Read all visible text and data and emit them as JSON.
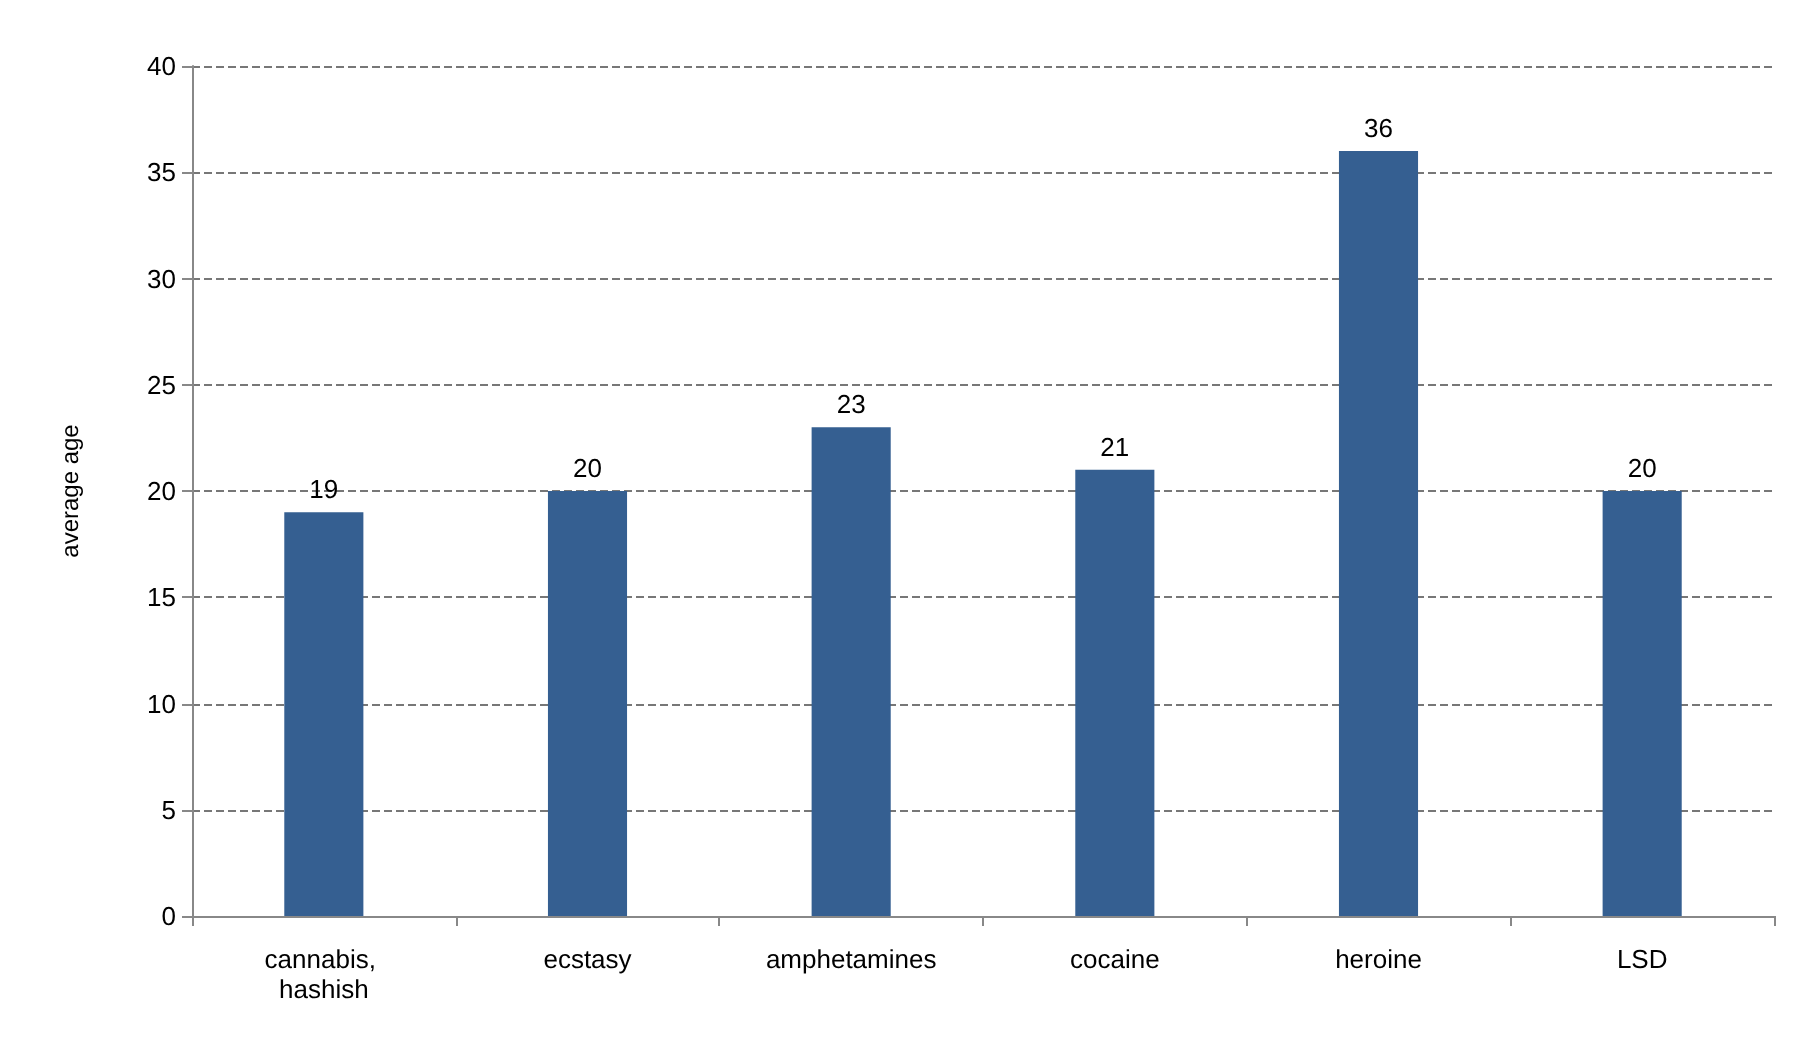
{
  "chart_data": {
    "type": "bar",
    "ylabel": "average age",
    "categories": [
      "cannabis, hashish",
      "ecstasy",
      "amphetamines",
      "cocaine",
      "heroine",
      "LSD"
    ],
    "values": [
      19,
      20,
      23,
      21,
      36,
      20
    ],
    "color": "#355f91",
    "ylim": [
      0,
      40
    ],
    "yticks": [
      0,
      5,
      10,
      15,
      20,
      25,
      30,
      35,
      40
    ],
    "grid": "y",
    "data_labels": true
  }
}
